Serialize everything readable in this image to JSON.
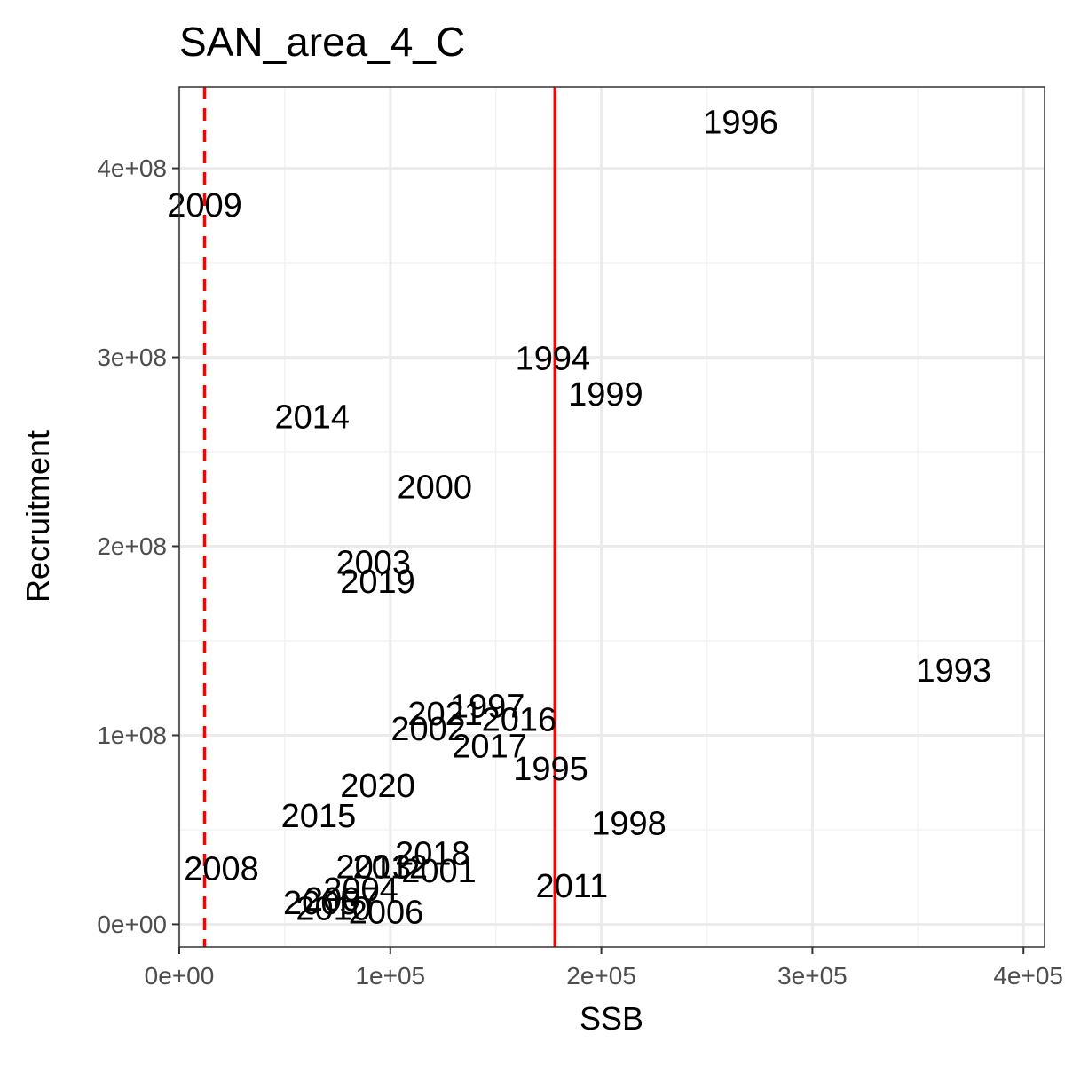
{
  "chart_data": {
    "type": "scatter",
    "title": "SAN_area_4_C",
    "xlabel": "SSB",
    "ylabel": "Recruitment",
    "xlim": [
      0,
      410000
    ],
    "ylim": [
      -12000000,
      443000000
    ],
    "x_ticks": [
      0,
      100000,
      200000,
      300000,
      400000
    ],
    "x_tick_labels": [
      "0e+00",
      "1e+05",
      "2e+05",
      "3e+05",
      "4e+05"
    ],
    "y_ticks": [
      0,
      100000000,
      200000000,
      300000000,
      400000000
    ],
    "y_tick_labels": [
      "0e+00",
      "1e+08",
      "2e+08",
      "3e+08",
      "4e+08"
    ],
    "grid": true,
    "points": [
      {
        "label": "1993",
        "x": 367000,
        "y": 134000000
      },
      {
        "label": "1994",
        "x": 177000,
        "y": 299000000
      },
      {
        "label": "1995",
        "x": 176000,
        "y": 82000000
      },
      {
        "label": "1996",
        "x": 266000,
        "y": 424000000
      },
      {
        "label": "1997",
        "x": 146000,
        "y": 115000000
      },
      {
        "label": "1998",
        "x": 213000,
        "y": 53000000
      },
      {
        "label": "1999",
        "x": 202000,
        "y": 280000000
      },
      {
        "label": "2000",
        "x": 121000,
        "y": 231000000
      },
      {
        "label": "2001",
        "x": 123000,
        "y": 28000000
      },
      {
        "label": "2002",
        "x": 118000,
        "y": 103000000
      },
      {
        "label": "2003",
        "x": 92000,
        "y": 191000000
      },
      {
        "label": "2004",
        "x": 86000,
        "y": 18000000
      },
      {
        "label": "2005",
        "x": 67000,
        "y": 11000000
      },
      {
        "label": "2006",
        "x": 98000,
        "y": 6000000
      },
      {
        "label": "2007",
        "x": 77000,
        "y": 13000000
      },
      {
        "label": "2008",
        "x": 20000,
        "y": 29000000
      },
      {
        "label": "2009",
        "x": 12000,
        "y": 380000000
      },
      {
        "label": "2010",
        "x": 73000,
        "y": 8000000
      },
      {
        "label": "2011",
        "x": 186000,
        "y": 20000000
      },
      {
        "label": "2012",
        "x": 100000,
        "y": 30000000
      },
      {
        "label": "2013",
        "x": 92000,
        "y": 30000000
      },
      {
        "label": "2014",
        "x": 63000,
        "y": 268000000
      },
      {
        "label": "2015",
        "x": 66000,
        "y": 57000000
      },
      {
        "label": "2016",
        "x": 161000,
        "y": 108000000
      },
      {
        "label": "2017",
        "x": 147000,
        "y": 94000000
      },
      {
        "label": "2018",
        "x": 120000,
        "y": 37000000
      },
      {
        "label": "2019",
        "x": 94000,
        "y": 181000000
      },
      {
        "label": "2020",
        "x": 94000,
        "y": 73000000
      },
      {
        "label": "2021",
        "x": 126000,
        "y": 111000000
      }
    ],
    "reference_lines": [
      {
        "axis": "x",
        "value": 12000,
        "style": "dashed",
        "color": "#ff0000"
      },
      {
        "axis": "x",
        "value": 178000,
        "style": "solid",
        "color": "#ff0000"
      }
    ],
    "colors": {
      "grid_major": "#ebebeb",
      "grid_minor": "#f3f3f3",
      "panel_border": "#333333",
      "tick_label": "#4d4d4d",
      "text": "#000000"
    }
  }
}
